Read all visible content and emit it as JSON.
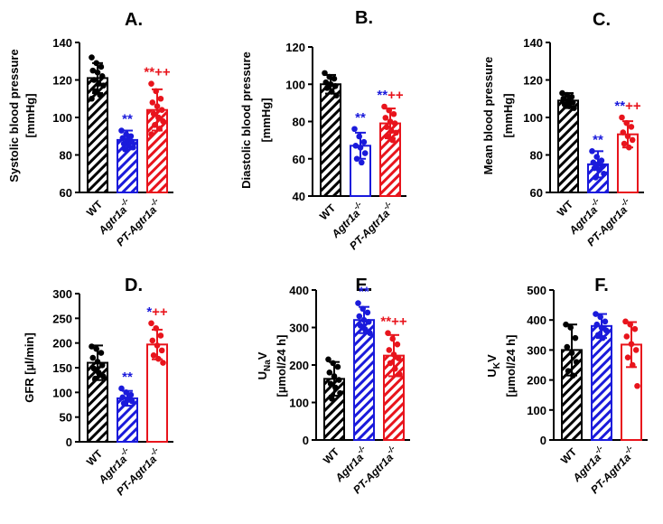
{
  "colors": {
    "WT": "#000000",
    "Agtr1a": "#1a1adb",
    "PT": "#e8141c"
  },
  "chart_data": [
    {
      "id": "A",
      "type": "bar",
      "title": "A.",
      "ylabel_lines": [
        "Systolic blood pressure",
        "[mmHg]"
      ],
      "ylim": [
        60,
        140
      ],
      "ticks": [
        60,
        80,
        100,
        120,
        140
      ],
      "categories": [
        "WT",
        "Agtr1a",
        "PT-Agtr1a"
      ],
      "values": [
        121,
        88,
        104
      ],
      "errors": [
        8,
        5,
        11
      ],
      "patterns": [
        "hatch",
        "hatch",
        "hatch"
      ],
      "points": [
        [
          132,
          129,
          127,
          125,
          124,
          122,
          120,
          118,
          117,
          114,
          112,
          110
        ],
        [
          93,
          91,
          90,
          89,
          88,
          87,
          86,
          85,
          84,
          83
        ],
        [
          118,
          114,
          110,
          108,
          106,
          104,
          102,
          100,
          98,
          96,
          94,
          91
        ]
      ],
      "annotations": [
        {
          "bar": 1,
          "text": "**",
          "color": "Agtr1a"
        },
        {
          "bar": 2,
          "text": "**++",
          "color": "PT"
        }
      ]
    },
    {
      "id": "B",
      "type": "bar",
      "title": "B.",
      "ylabel_lines": [
        "Diastolic blood pressure",
        "[mmHg]"
      ],
      "ylim": [
        40,
        120
      ],
      "ticks": [
        40,
        60,
        80,
        100,
        120
      ],
      "categories": [
        "WT",
        "Agtr1a",
        "PT-Agtr1a"
      ],
      "values": [
        100,
        67,
        79
      ],
      "errors": [
        5,
        7,
        8
      ],
      "patterns": [
        "hatch",
        "open",
        "hatch"
      ],
      "points": [
        [
          106,
          104,
          103,
          101,
          100,
          99,
          98,
          96,
          94
        ],
        [
          76,
          72,
          69,
          67,
          66,
          63,
          60,
          58
        ],
        [
          88,
          86,
          84,
          82,
          80,
          79,
          77,
          75,
          74,
          72,
          70
        ]
      ],
      "annotations": [
        {
          "bar": 1,
          "text": "**",
          "color": "Agtr1a"
        },
        {
          "bar": 2,
          "text": "**",
          "color": "Agtr1a"
        },
        {
          "bar": 2,
          "text": "++",
          "color": "PT"
        }
      ]
    },
    {
      "id": "C",
      "type": "bar",
      "title": "C.",
      "ylabel_lines": [
        "Mean blood pressure",
        "[mmHg]"
      ],
      "ylim": [
        60,
        140
      ],
      "ticks": [
        60,
        80,
        100,
        120,
        140
      ],
      "categories": [
        "WT",
        "Agtr1a",
        "PT-Agtr1a"
      ],
      "values": [
        109,
        75,
        91
      ],
      "errors": [
        4,
        7,
        7
      ],
      "patterns": [
        "hatch",
        "hatch",
        "open"
      ],
      "points": [
        [
          113,
          112,
          111,
          110,
          109,
          108,
          107,
          106,
          105
        ],
        [
          82,
          79,
          77,
          76,
          75,
          74,
          73,
          72,
          70,
          68
        ],
        [
          100,
          97,
          95,
          92,
          90,
          88,
          86,
          84
        ]
      ],
      "annotations": [
        {
          "bar": 1,
          "text": "**",
          "color": "Agtr1a"
        },
        {
          "bar": 2,
          "text": "**",
          "color": "Agtr1a"
        },
        {
          "bar": 2,
          "text": "++",
          "color": "PT"
        }
      ]
    },
    {
      "id": "D",
      "type": "bar",
      "title": "D.",
      "ylabel_lines": [
        "GFR [µl/min]"
      ],
      "ylim": [
        0,
        300
      ],
      "ticks": [
        0,
        50,
        100,
        150,
        200,
        250,
        300
      ],
      "categories": [
        "WT",
        "Agtr1a",
        "PT-Agtr1a"
      ],
      "values": [
        160,
        88,
        197
      ],
      "errors": [
        35,
        15,
        30
      ],
      "patterns": [
        "hatch",
        "hatch",
        "open"
      ],
      "points": [
        [
          193,
          188,
          180,
          170,
          162,
          155,
          148,
          140,
          132,
          128
        ],
        [
          108,
          100,
          95,
          90,
          86,
          82,
          78
        ],
        [
          240,
          230,
          215,
          205,
          195,
          185,
          175,
          168,
          160
        ]
      ],
      "annotations": [
        {
          "bar": 1,
          "text": "**",
          "color": "Agtr1a"
        },
        {
          "bar": 2,
          "text": "*",
          "color": "Agtr1a"
        },
        {
          "bar": 2,
          "text": "++",
          "color": "PT"
        }
      ]
    },
    {
      "id": "E",
      "type": "bar",
      "title": "E.",
      "ylabel_lines": [
        "UNaV",
        "[µmol/24 h]"
      ],
      "ylim": [
        0,
        400
      ],
      "ticks": [
        0,
        100,
        200,
        300,
        400
      ],
      "categories": [
        "WT",
        "Agtr1a",
        "PT-Agtr1a"
      ],
      "values": [
        163,
        320,
        225
      ],
      "errors": [
        45,
        35,
        55
      ],
      "patterns": [
        "hatch",
        "hatch",
        "hatch"
      ],
      "points": [
        [
          215,
          205,
          195,
          180,
          170,
          160,
          150,
          140,
          125,
          110
        ],
        [
          365,
          350,
          340,
          330,
          320,
          315,
          305,
          295,
          285
        ],
        [
          285,
          270,
          255,
          240,
          228,
          218,
          205,
          190,
          175
        ]
      ],
      "annotations": [
        {
          "bar": 1,
          "text": "**",
          "color": "Agtr1a"
        },
        {
          "bar": 2,
          "text": "**++",
          "color": "PT"
        }
      ]
    },
    {
      "id": "F",
      "type": "bar",
      "title": "F.",
      "ylabel_lines": [
        "UKV",
        "[µmol/24 h]"
      ],
      "ylim": [
        0,
        500
      ],
      "ticks": [
        0,
        100,
        200,
        300,
        400,
        500
      ],
      "categories": [
        "WT",
        "Agtr1a",
        "PT-Agtr1a"
      ],
      "values": [
        300,
        380,
        318
      ],
      "errors": [
        85,
        40,
        75
      ],
      "patterns": [
        "hatch",
        "hatch",
        "open"
      ],
      "points": [
        [
          385,
          375,
          340,
          310,
          290,
          260,
          230,
          215
        ],
        [
          420,
          410,
          395,
          385,
          375,
          365,
          350,
          340
        ],
        [
          395,
          385,
          370,
          345,
          320,
          300,
          275,
          250,
          180
        ]
      ],
      "annotations": []
    }
  ]
}
